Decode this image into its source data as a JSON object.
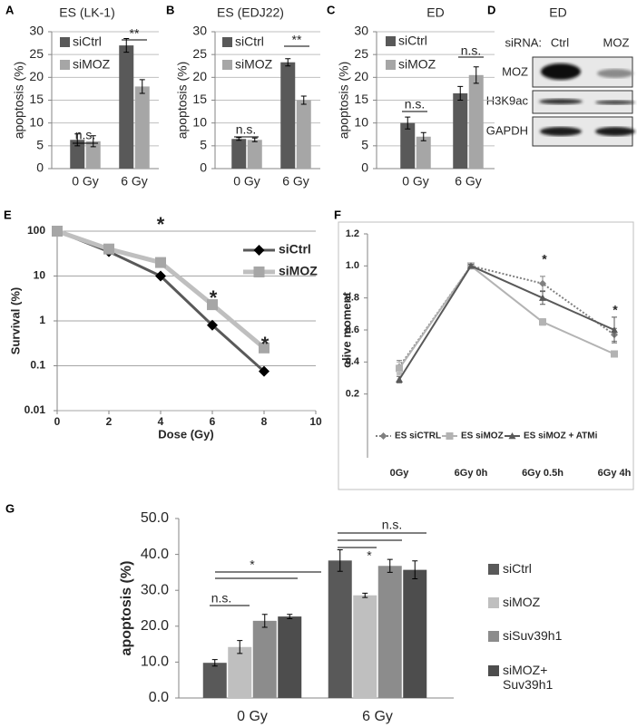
{
  "chart_data": [
    {
      "panel": "A",
      "type": "bar",
      "title": "ES (LK-1)",
      "y_label": "apoptosis (%)",
      "categories": [
        "0 Gy",
        "6 Gy"
      ],
      "series": [
        {
          "name": "siCtrl",
          "color": "#595959",
          "values": [
            6.3,
            27
          ],
          "errors": [
            1.3,
            1.5
          ]
        },
        {
          "name": "siMOZ",
          "color": "#a6a6a6",
          "values": [
            6,
            18
          ],
          "errors": [
            1.2,
            1.5
          ]
        }
      ],
      "ylim": [
        0,
        30
      ],
      "yticks": [
        0,
        5,
        10,
        15,
        20,
        25,
        30
      ],
      "grid": true,
      "legend": "upper left",
      "annotations": [
        "n.s.",
        "**"
      ]
    },
    {
      "panel": "B",
      "type": "bar",
      "title": "ES (EDJ22)",
      "y_label": "apoptosis (%)",
      "categories": [
        "0 Gy",
        "6 Gy"
      ],
      "series": [
        {
          "name": "siCtrl",
          "color": "#595959",
          "values": [
            6.5,
            23.3
          ],
          "errors": [
            0.3,
            0.8
          ]
        },
        {
          "name": "siMOZ",
          "color": "#a6a6a6",
          "values": [
            6.3,
            15
          ],
          "errors": [
            0.4,
            0.9
          ]
        }
      ],
      "ylim": [
        0,
        30
      ],
      "yticks": [
        0,
        5,
        10,
        15,
        20,
        25,
        30
      ],
      "grid": true,
      "legend": "upper left",
      "annotations": [
        "n.s.",
        "**"
      ]
    },
    {
      "panel": "C",
      "type": "bar",
      "title": "ED",
      "y_label": "apoptosis (%)",
      "categories": [
        "0 Gy",
        "6 Gy"
      ],
      "series": [
        {
          "name": "siCtrl",
          "color": "#595959",
          "values": [
            10,
            16.5
          ],
          "errors": [
            1.3,
            1.5
          ]
        },
        {
          "name": "siMOZ",
          "color": "#a6a6a6",
          "values": [
            7,
            20.5
          ],
          "errors": [
            0.9,
            1.8
          ]
        }
      ],
      "ylim": [
        0,
        30
      ],
      "yticks": [
        0,
        5,
        10,
        15,
        20,
        25,
        30
      ],
      "grid": true,
      "legend": "upper left",
      "annotations": [
        "n.s.",
        "n.s."
      ]
    },
    {
      "panel": "E",
      "type": "line",
      "x_label": "Dose (Gy)",
      "y_label": "Survival (%)",
      "x": [
        0,
        2,
        4,
        6,
        8
      ],
      "series": [
        {
          "name": "siCtrl",
          "color": "#595959",
          "marker": "diamond",
          "marker_color": "#000000",
          "values": [
            100,
            35,
            10,
            0.8,
            0.075
          ]
        },
        {
          "name": "siMOZ",
          "color": "#bfbfbf",
          "marker": "square",
          "marker_color": "#a6a6a6",
          "values": [
            100,
            40,
            20,
            2.3,
            0.25
          ]
        }
      ],
      "xlim": [
        0,
        10
      ],
      "xticks": [
        0,
        2,
        4,
        6,
        8,
        10
      ],
      "ylim": [
        0.01,
        100
      ],
      "yticks": [
        0.01,
        0.1,
        1,
        10,
        100
      ],
      "yscale": "log",
      "grid": true,
      "legend": "upper right",
      "annotations": [
        "*",
        "*",
        "*"
      ]
    },
    {
      "panel": "F",
      "type": "line",
      "y_label": "olive moment",
      "categories": [
        "0Gy",
        "6Gy 0h",
        "6Gy 0.5h",
        "6Gy 4h"
      ],
      "series": [
        {
          "name": "ES siCTRL",
          "color": "#808080",
          "marker": "diamond",
          "marker_color": "#808080",
          "line_style": "dotted",
          "values": [
            0.37,
            1,
            0.89,
            0.57
          ],
          "errors": [
            0.04,
            0.01,
            0.045,
            0.04
          ]
        },
        {
          "name": "ES siMOZ",
          "color": "#b3b3b3",
          "marker": "square",
          "marker_color": "#b3b3b3",
          "line_style": "solid",
          "values": [
            0.36,
            1,
            0.65,
            0.45
          ],
          "errors": [
            0.04,
            0.01,
            0.02,
            0.02
          ]
        },
        {
          "name": "ES siMOZ + ATMi",
          "color": "#595959",
          "marker": "triangle",
          "marker_color": "#595959",
          "line_style": "solid",
          "values": [
            0.29,
            1,
            0.8,
            0.6
          ],
          "errors": [
            0.02,
            0.01,
            0.04,
            0.08
          ]
        }
      ],
      "ylim": [
        0,
        1.2
      ],
      "yticks": [
        0.2,
        0.4,
        0.6,
        0.8,
        {
          "value": 1,
          "label": "1.0"
        },
        1.2
      ],
      "grid": false,
      "legend": "bottom",
      "annotations": [
        "*",
        "*"
      ]
    },
    {
      "panel": "G",
      "type": "bar",
      "y_label": "apoptosis (%)",
      "categories": [
        "0 Gy",
        "6 Gy"
      ],
      "series": [
        {
          "name": "siCtrl",
          "color": "#595959",
          "values": [
            9.8,
            38.3
          ],
          "errors": [
            0.9,
            3
          ]
        },
        {
          "name": "siMOZ",
          "color": "#bfbfbf",
          "values": [
            14.2,
            28.6
          ],
          "errors": [
            1.8,
            0.6
          ]
        },
        {
          "name": "siSuv39h1",
          "color": "#8c8c8c",
          "values": [
            21.5,
            36.8
          ],
          "errors": [
            1.8,
            1.8
          ]
        },
        {
          "name": "siMOZ+ Suv39h1",
          "color": "#4d4d4d",
          "values": [
            22.7,
            35.7
          ],
          "errors": [
            0.6,
            2.5
          ]
        }
      ],
      "ylim": [
        0,
        50
      ],
      "yticks": [
        {
          "value": 0,
          "label": "0.0"
        },
        {
          "value": 10,
          "label": "10.0"
        },
        {
          "value": 20,
          "label": "20.0"
        },
        {
          "value": 30,
          "label": "30.0"
        },
        {
          "value": 40,
          "label": "40.0"
        },
        {
          "value": 50,
          "label": "50.0"
        }
      ],
      "grid": false,
      "legend": "right",
      "annotations": [
        "n.s.",
        "*",
        "*",
        "n.s."
      ]
    }
  ],
  "blot": {
    "panel": "D",
    "title": "ED",
    "header": "siRNA:",
    "lanes": [
      "Ctrl",
      "MOZ"
    ],
    "rows": [
      "MOZ",
      "H3K9ac",
      "GAPDH"
    ]
  }
}
